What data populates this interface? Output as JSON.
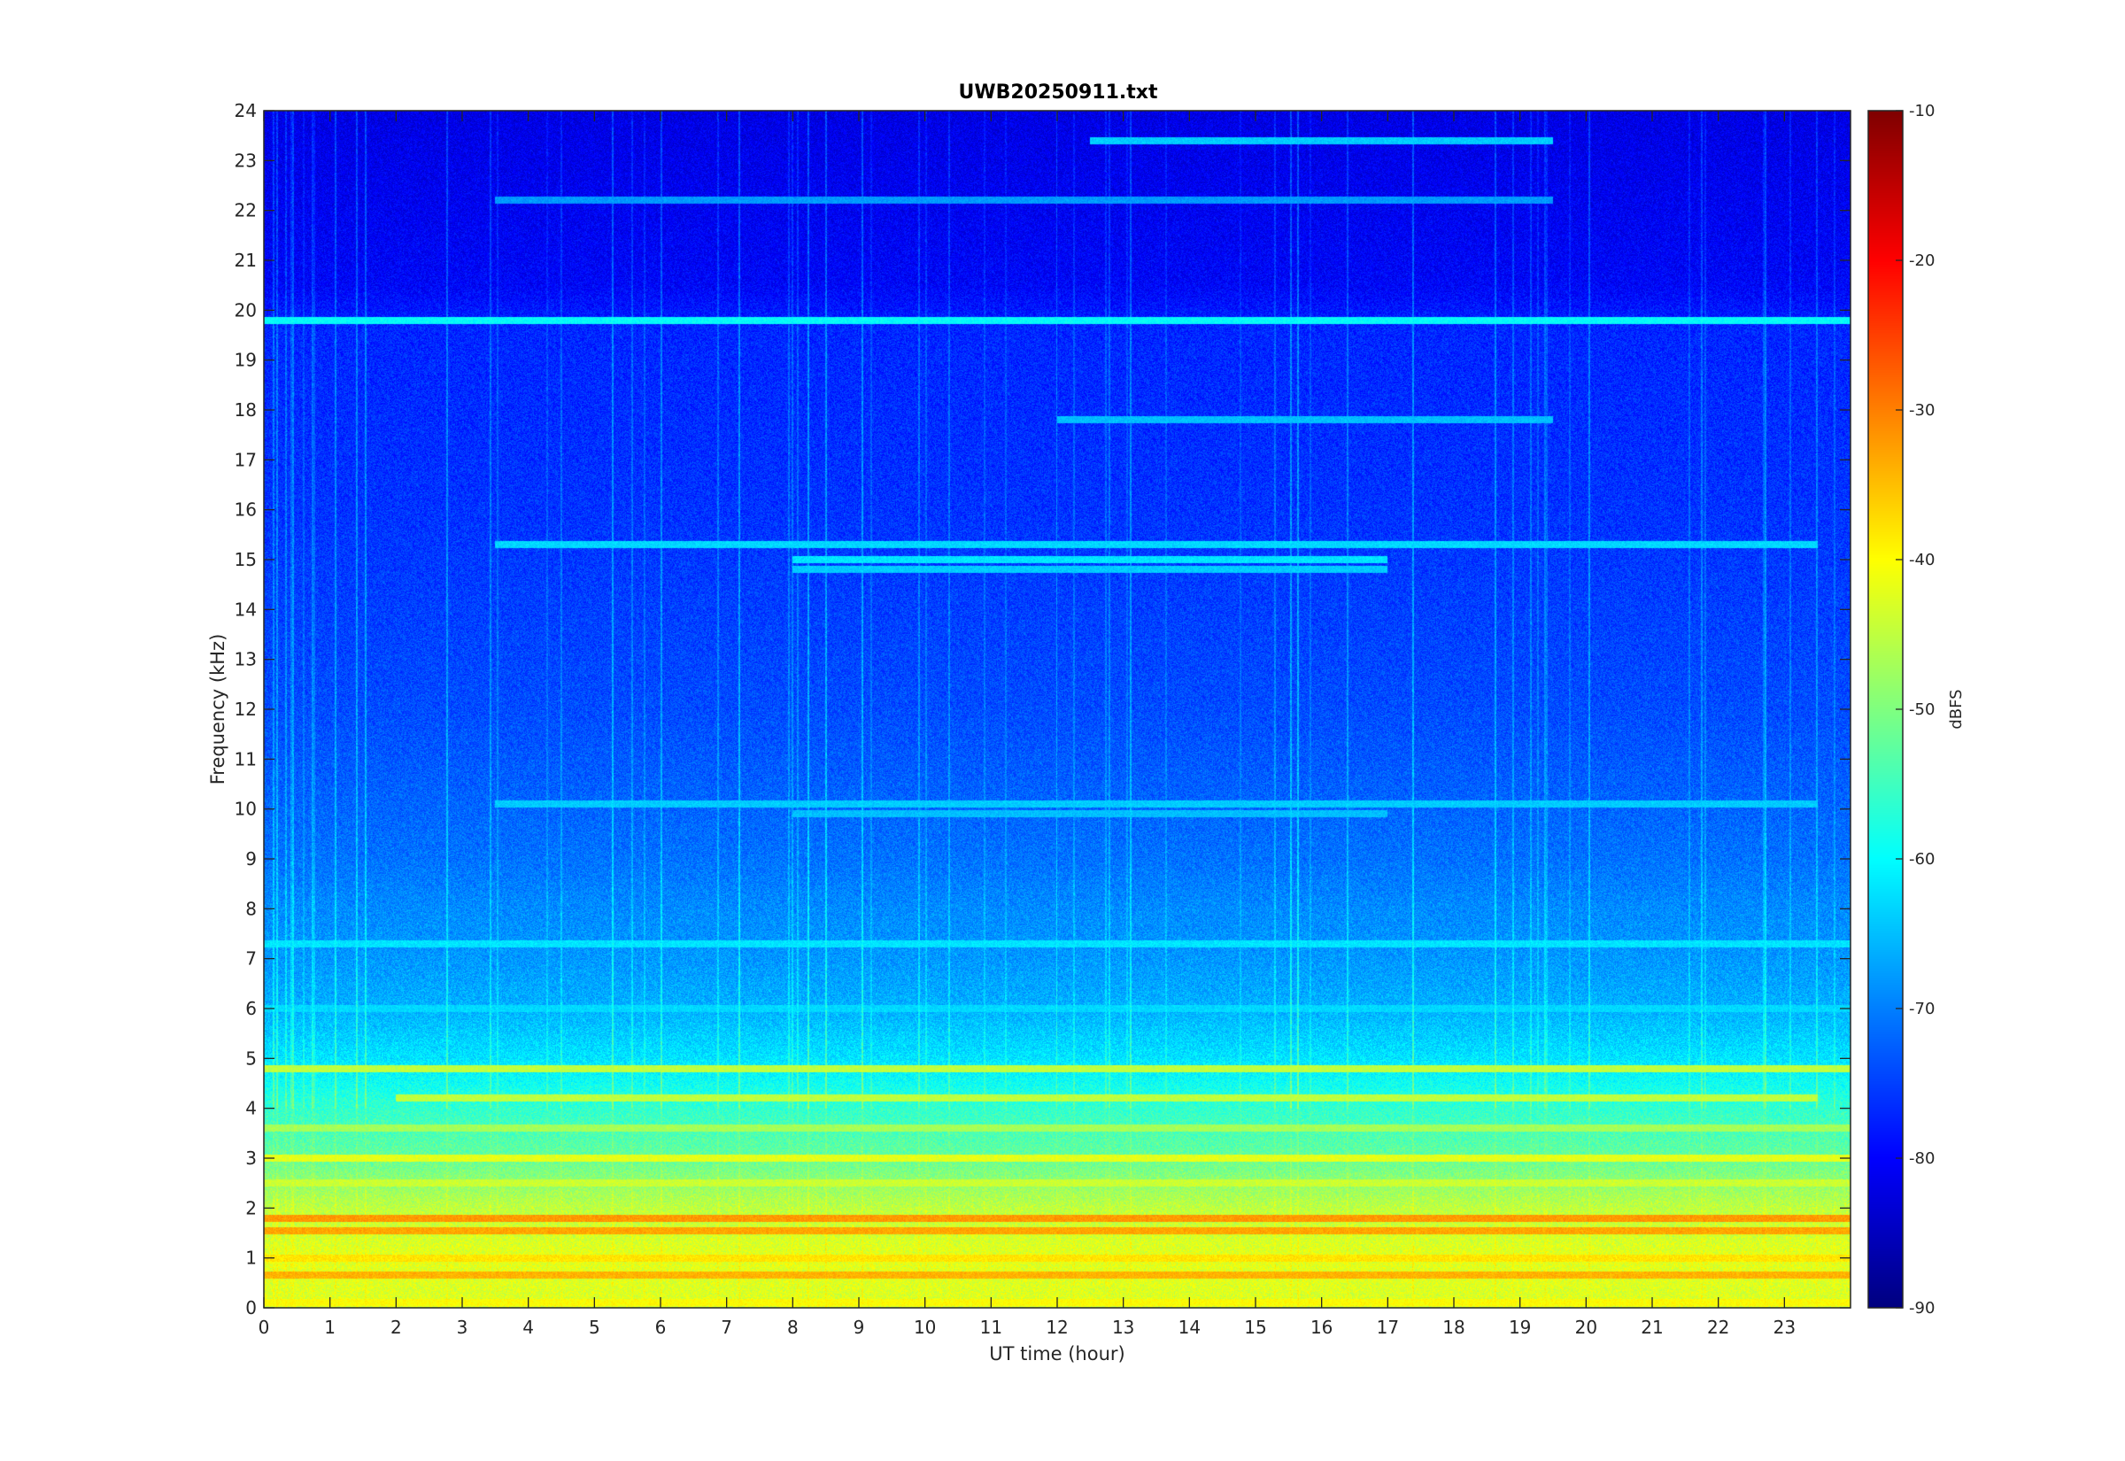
{
  "chart_data": {
    "type": "heatmap",
    "title": "UWB20250911.txt",
    "xlabel": "UT time (hour)",
    "ylabel": "Frequency (kHz)",
    "xlim": [
      0,
      24
    ],
    "ylim": [
      0,
      24
    ],
    "x_ticks": [
      "0",
      "1",
      "2",
      "3",
      "4",
      "5",
      "6",
      "7",
      "8",
      "9",
      "10",
      "11",
      "12",
      "13",
      "14",
      "15",
      "16",
      "17",
      "18",
      "19",
      "20",
      "21",
      "22",
      "23"
    ],
    "y_ticks": [
      "0",
      "1",
      "2",
      "3",
      "4",
      "5",
      "6",
      "7",
      "8",
      "9",
      "10",
      "11",
      "12",
      "13",
      "14",
      "15",
      "16",
      "17",
      "18",
      "19",
      "20",
      "21",
      "22",
      "23",
      "24"
    ],
    "colorbar": {
      "label": "dBFS",
      "colormap": "jet",
      "range": [
        -90,
        -10
      ],
      "ticks": [
        "-90",
        "-80",
        "-70",
        "-60",
        "-50",
        "-40",
        "-30",
        "-20",
        "-10"
      ]
    },
    "level_profile_dbfs": [
      {
        "freq_khz": 0.0,
        "level": -43
      },
      {
        "freq_khz": 1.0,
        "level": -42
      },
      {
        "freq_khz": 2.0,
        "level": -45
      },
      {
        "freq_khz": 3.0,
        "level": -52
      },
      {
        "freq_khz": 4.0,
        "level": -56
      },
      {
        "freq_khz": 5.0,
        "level": -62
      },
      {
        "freq_khz": 6.0,
        "level": -66
      },
      {
        "freq_khz": 7.0,
        "level": -68
      },
      {
        "freq_khz": 8.0,
        "level": -69
      },
      {
        "freq_khz": 9.0,
        "level": -71
      },
      {
        "freq_khz": 12.0,
        "level": -74
      },
      {
        "freq_khz": 16.0,
        "level": -76
      },
      {
        "freq_khz": 19.6,
        "level": -77
      },
      {
        "freq_khz": 20.5,
        "level": -80
      },
      {
        "freq_khz": 24.0,
        "level": -82
      }
    ],
    "tonal_lines": [
      {
        "freq_khz": 19.8,
        "start_hour": 0,
        "end_hour": 24,
        "level": -60
      },
      {
        "freq_khz": 23.4,
        "start_hour": 12.5,
        "end_hour": 19.5,
        "level": -64
      },
      {
        "freq_khz": 22.2,
        "start_hour": 3.5,
        "end_hour": 19.5,
        "level": -68
      },
      {
        "freq_khz": 17.8,
        "start_hour": 12.0,
        "end_hour": 19.5,
        "level": -65
      },
      {
        "freq_khz": 15.3,
        "start_hour": 3.5,
        "end_hour": 23.5,
        "level": -63
      },
      {
        "freq_khz": 15.0,
        "start_hour": 8.0,
        "end_hour": 17.0,
        "level": -62
      },
      {
        "freq_khz": 14.8,
        "start_hour": 8.0,
        "end_hour": 17.0,
        "level": -64
      },
      {
        "freq_khz": 10.1,
        "start_hour": 3.5,
        "end_hour": 23.5,
        "level": -64
      },
      {
        "freq_khz": 9.9,
        "start_hour": 8.0,
        "end_hour": 17.0,
        "level": -65
      },
      {
        "freq_khz": 6.0,
        "start_hour": 0,
        "end_hour": 24,
        "level": -63
      },
      {
        "freq_khz": 7.3,
        "start_hour": 0,
        "end_hour": 24,
        "level": -62
      },
      {
        "freq_khz": 4.8,
        "start_hour": 0,
        "end_hour": 24,
        "level": -45
      },
      {
        "freq_khz": 4.2,
        "start_hour": 2,
        "end_hour": 23.5,
        "level": -45
      },
      {
        "freq_khz": 3.6,
        "start_hour": 0,
        "end_hour": 24,
        "level": -47
      },
      {
        "freq_khz": 3.0,
        "start_hour": 0,
        "end_hour": 24,
        "level": -42
      },
      {
        "freq_khz": 2.5,
        "start_hour": 0,
        "end_hour": 24,
        "level": -44
      },
      {
        "freq_khz": 1.8,
        "start_hour": 0,
        "end_hour": 24,
        "level": -32
      },
      {
        "freq_khz": 1.55,
        "start_hour": 0,
        "end_hour": 24,
        "level": -33
      },
      {
        "freq_khz": 1.0,
        "start_hour": 0,
        "end_hour": 24,
        "level": -38
      },
      {
        "freq_khz": 0.65,
        "start_hour": 0,
        "end_hour": 24,
        "level": -34
      },
      {
        "freq_khz": 0.1,
        "start_hour": 0,
        "end_hour": 24,
        "level": -40
      }
    ]
  }
}
